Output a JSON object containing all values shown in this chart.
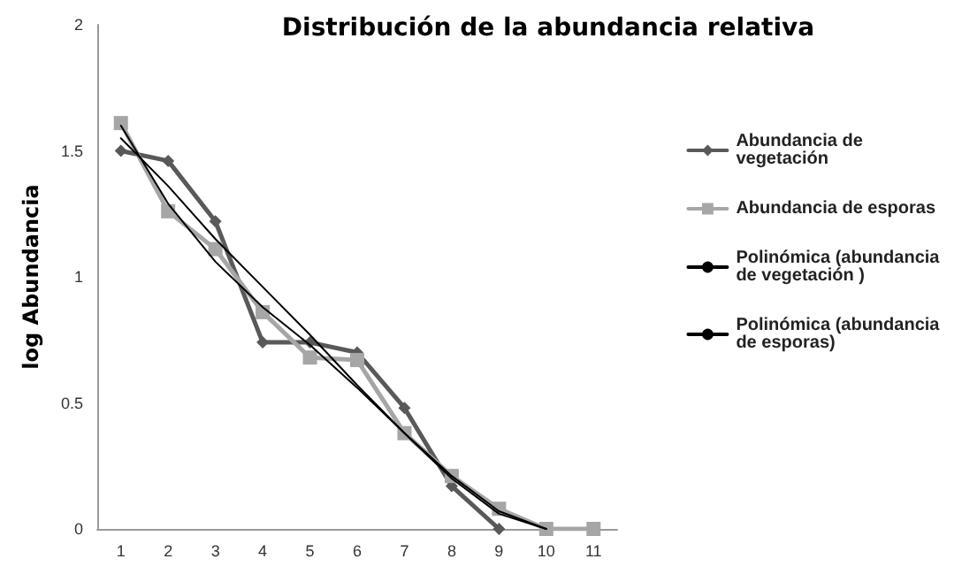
{
  "chart_data": {
    "type": "line",
    "title": "Distribución de la abundancia relativa",
    "ylabel": "log Abundancia",
    "categories": [
      "1",
      "2",
      "3",
      "4",
      "5",
      "6",
      "7",
      "8",
      "9",
      "10",
      "11"
    ],
    "series": [
      {
        "name": "Abundancia de vegetación",
        "color": "#595959",
        "marker": "diamond",
        "values": [
          1.5,
          1.46,
          1.22,
          0.74,
          0.74,
          0.7,
          0.48,
          0.17,
          0,
          null,
          null
        ]
      },
      {
        "name": "Abundancia de esporas",
        "color": "#a6a6a6",
        "marker": "square",
        "values": [
          1.61,
          1.26,
          1.11,
          0.86,
          0.68,
          0.67,
          0.38,
          0.21,
          0.08,
          0,
          0
        ]
      },
      {
        "name": "Polinómica (abundancia de vegetación )",
        "color": "#000000",
        "marker": "none",
        "values": [
          1.6,
          1.29,
          1.06,
          0.88,
          0.73,
          0.56,
          0.38,
          0.2,
          0.06,
          0,
          null
        ]
      },
      {
        "name": "Polinómica (abundancia de esporas)",
        "color": "#000000",
        "marker": "none",
        "values": [
          1.55,
          1.36,
          1.15,
          0.96,
          0.77,
          0.57,
          0.38,
          0.21,
          0.07,
          0,
          null
        ]
      }
    ],
    "ylim": [
      0,
      2
    ],
    "yticks": [
      0,
      0.5,
      1,
      1.5,
      2
    ],
    "grid": false,
    "legend": "right"
  }
}
